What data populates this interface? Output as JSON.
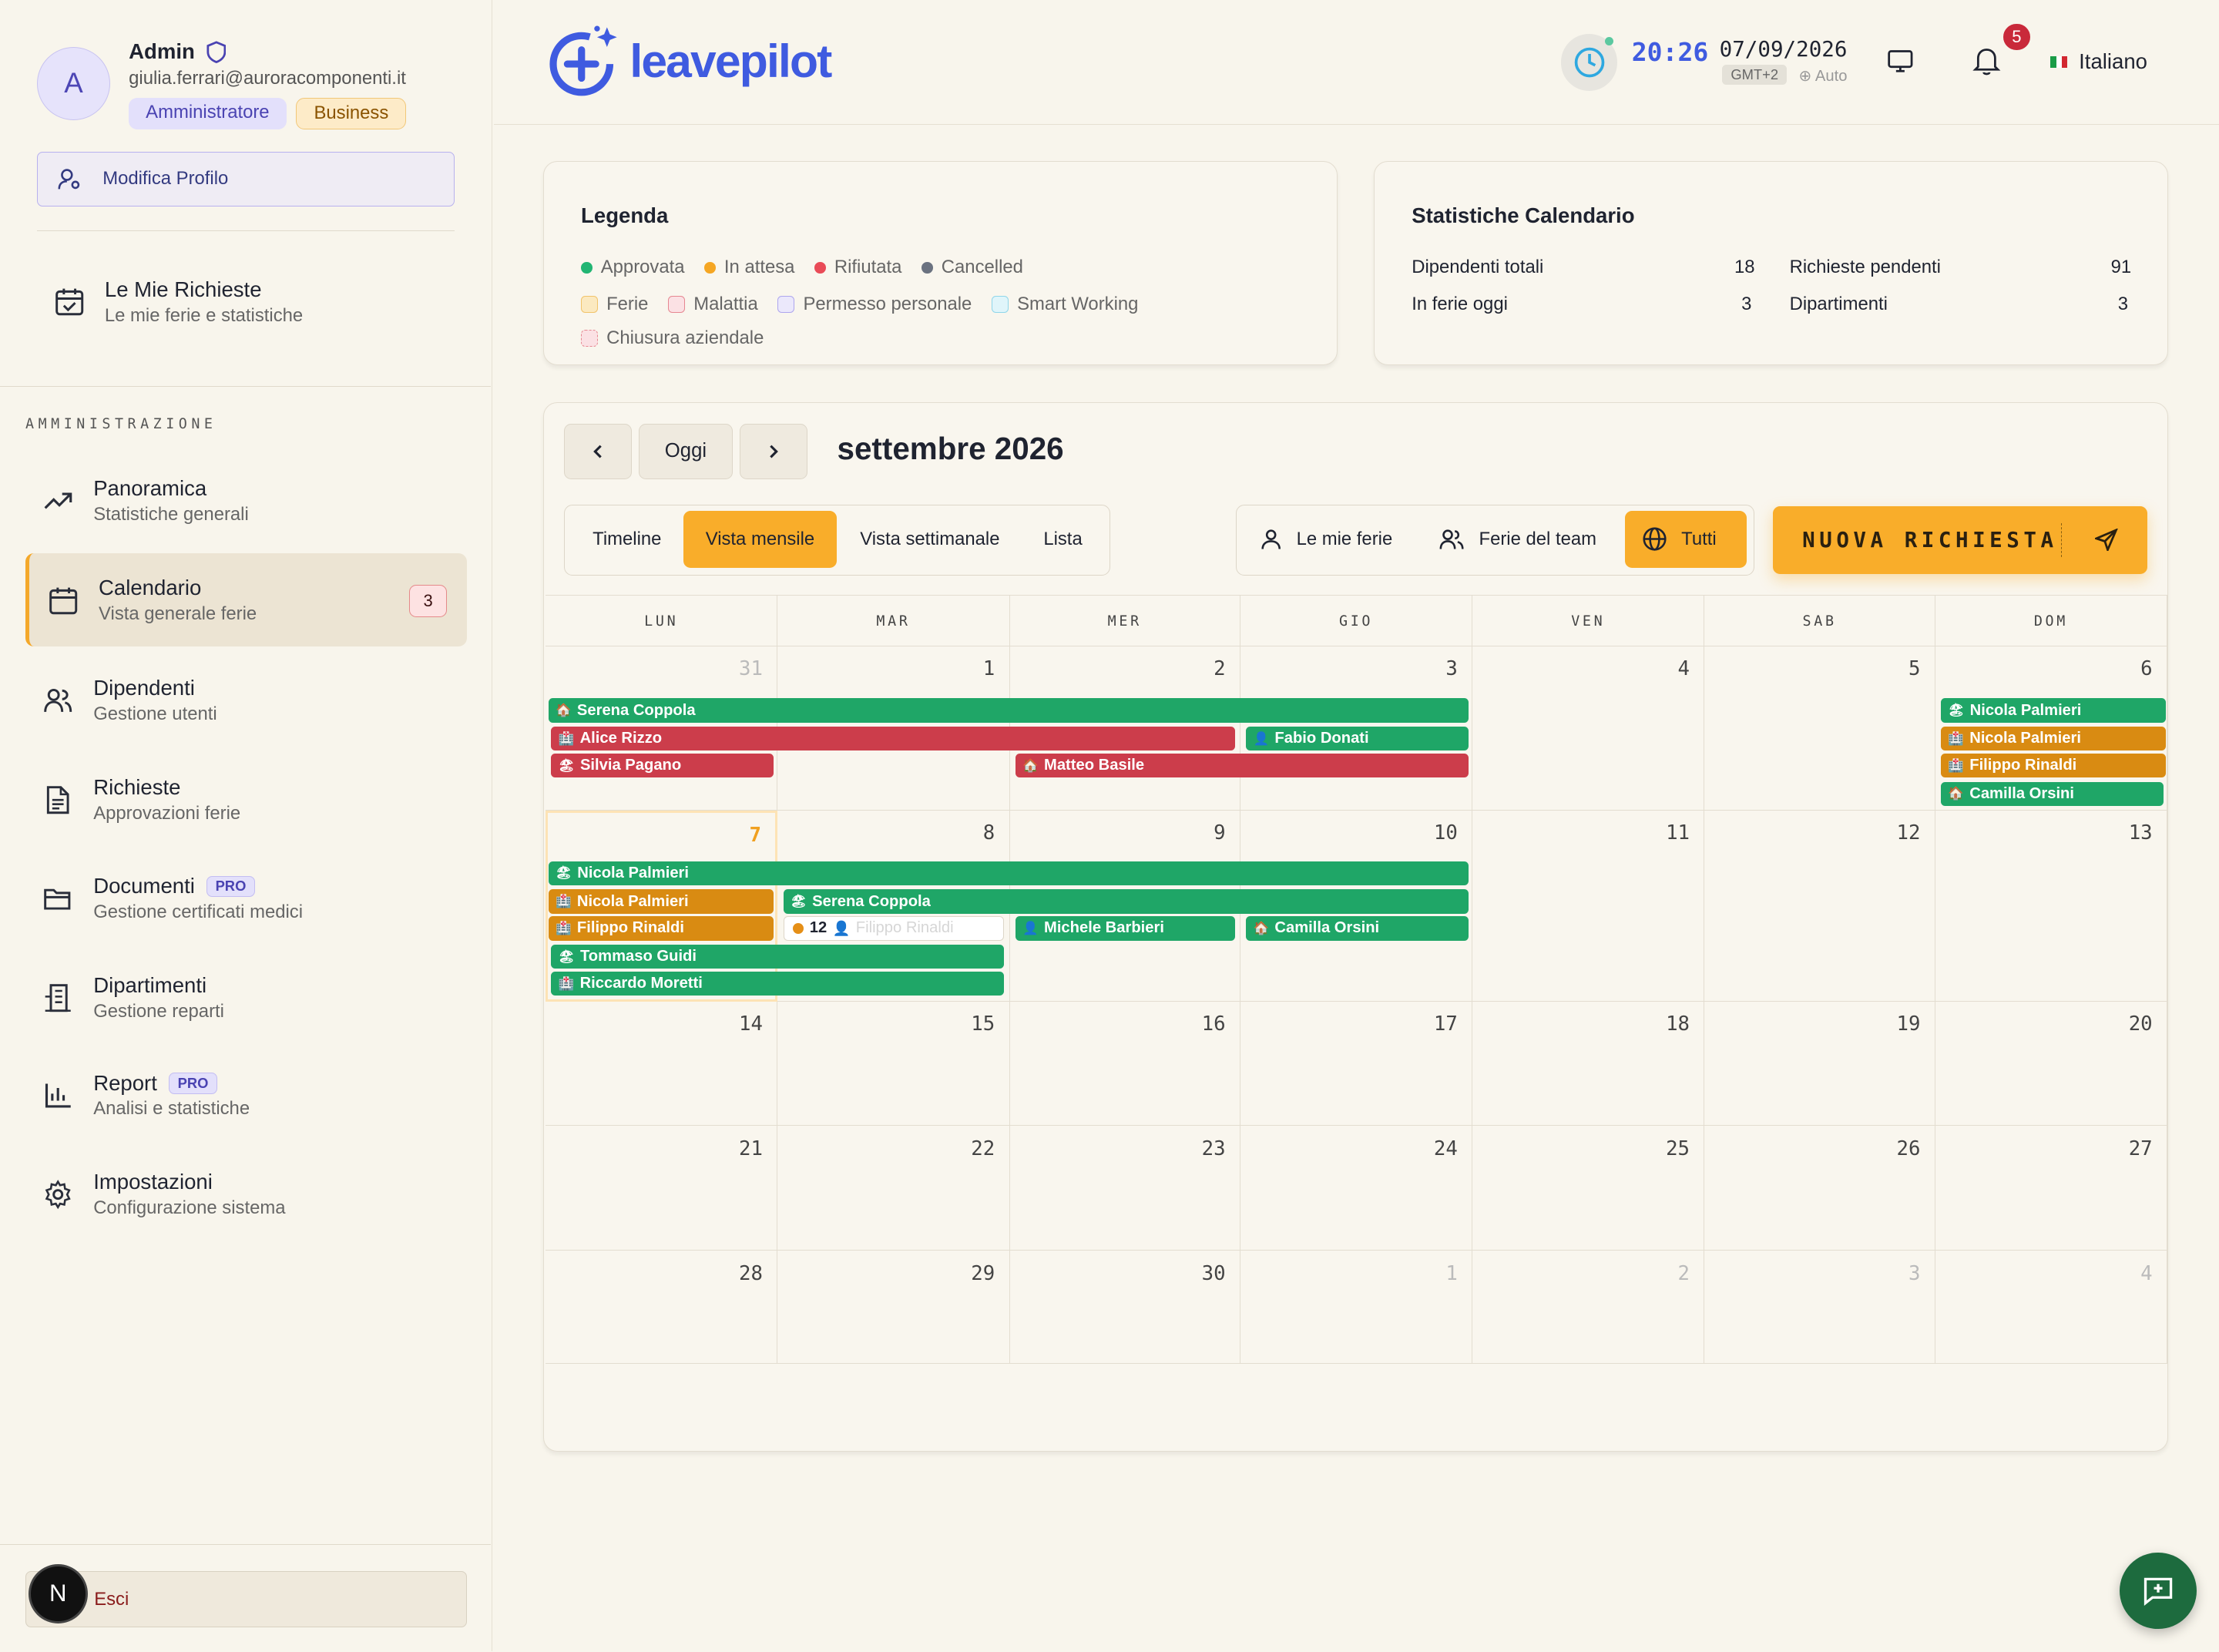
{
  "profile": {
    "avatar_letter": "A",
    "name": "Admin",
    "email": "giulia.ferrari@auroracomponenti.it",
    "role_badge": "Amministratore",
    "plan_badge": "Business",
    "edit_label": "Modifica Profilo"
  },
  "my_requests": {
    "title": "Le Mie Richieste",
    "subtitle": "Le mie ferie e statistiche"
  },
  "admin_section": "AMMINISTRAZIONE",
  "nav": [
    {
      "title": "Panoramica",
      "subtitle": "Statistiche generali",
      "icon": "trending-up-icon"
    },
    {
      "title": "Calendario",
      "subtitle": "Vista generale ferie",
      "icon": "calendar-icon",
      "badge": "3"
    },
    {
      "title": "Dipendenti",
      "subtitle": "Gestione utenti",
      "icon": "users-icon"
    },
    {
      "title": "Richieste",
      "subtitle": "Approvazioni ferie",
      "icon": "document-icon"
    },
    {
      "title": "Documenti",
      "subtitle": "Gestione certificati medici",
      "icon": "folder-icon",
      "pro": "PRO"
    },
    {
      "title": "Dipartimenti",
      "subtitle": "Gestione reparti",
      "icon": "building-icon"
    },
    {
      "title": "Report",
      "subtitle": "Analisi e statistiche",
      "icon": "bar-chart-icon",
      "pro": "PRO"
    },
    {
      "title": "Impostazioni",
      "subtitle": "Configurazione sistema",
      "icon": "gear-icon"
    }
  ],
  "logout": {
    "label": "Esci",
    "badge_letter": "N"
  },
  "header": {
    "logo": "leavepilot",
    "time": "20:26",
    "date": "07/09/2026",
    "timezone": "GMT+2",
    "tz_mode": "⊕ Auto",
    "notifications": "5",
    "language": "Italiano"
  },
  "legend": {
    "title": "Legenda",
    "statuses": [
      {
        "label": "Approvata",
        "color": "#22b573"
      },
      {
        "label": "In attesa",
        "color": "#f5a623"
      },
      {
        "label": "Rifiutata",
        "color": "#e94b57"
      },
      {
        "label": "Cancelled",
        "color": "#6b7280"
      }
    ],
    "types": [
      {
        "label": "Ferie",
        "color": "#f7d98e"
      },
      {
        "label": "Malattia",
        "color": "#f6c3c8"
      },
      {
        "label": "Permesso personale",
        "color": "#d9d4f6"
      },
      {
        "label": "Smart Working",
        "color": "#c6ecf5"
      }
    ],
    "closure": "Chiusura aziendale"
  },
  "stats": {
    "title": "Statistiche Calendario",
    "items": [
      {
        "label": "Dipendenti totali",
        "value": "18"
      },
      {
        "label": "Richieste pendenti",
        "value": "91"
      },
      {
        "label": "In ferie oggi",
        "value": "3"
      },
      {
        "label": "Dipartimenti",
        "value": "3"
      }
    ]
  },
  "calendar": {
    "today_label": "Oggi",
    "month": "settembre 2026",
    "views": [
      "Timeline",
      "Vista mensile",
      "Vista settimanale",
      "Lista"
    ],
    "active_view": "Vista mensile",
    "filters": [
      "Le mie ferie",
      "Ferie del team",
      "Tutti"
    ],
    "active_filter": "Tutti",
    "new_request": "NUOVA RICHIESTA",
    "days_of_week": [
      "LUN",
      "MAR",
      "MER",
      "GIO",
      "VEN",
      "SAB",
      "DOM"
    ],
    "weeks": [
      [
        "31",
        "1",
        "2",
        "3",
        "4",
        "5",
        "6"
      ],
      [
        "7",
        "8",
        "9",
        "10",
        "11",
        "12",
        "13"
      ],
      [
        "14",
        "15",
        "16",
        "17",
        "18",
        "19",
        "20"
      ],
      [
        "21",
        "22",
        "23",
        "24",
        "25",
        "26",
        "27"
      ],
      [
        "28",
        "29",
        "30",
        "1",
        "2",
        "3",
        "4"
      ]
    ],
    "events": {
      "w1_serena": "Serena Coppola",
      "w1_alice": "Alice Rizzo",
      "w1_fabio": "Fabio Donati",
      "w1_silvia": "Silvia Pagano",
      "w1_matteo": "Matteo Basile",
      "w1_nicola1": "Nicola Palmieri",
      "w1_nicola2": "Nicola Palmieri",
      "w1_filippo": "Filippo Rinaldi",
      "w1_camilla": "Camilla Orsini",
      "w2_nicola1": "Nicola Palmieri",
      "w2_nicola2": "Nicola Palmieri",
      "w2_serena": "Serena Coppola",
      "w2_filippo": "Filippo Rinaldi",
      "w2_more_count": "12",
      "w2_more_name": "Filippo Rinaldi",
      "w2_michele": "Michele Barbieri",
      "w2_camilla": "Camilla Orsini",
      "w2_tommaso": "Tommaso Guidi",
      "w2_riccardo": "Riccardo Moretti"
    }
  }
}
